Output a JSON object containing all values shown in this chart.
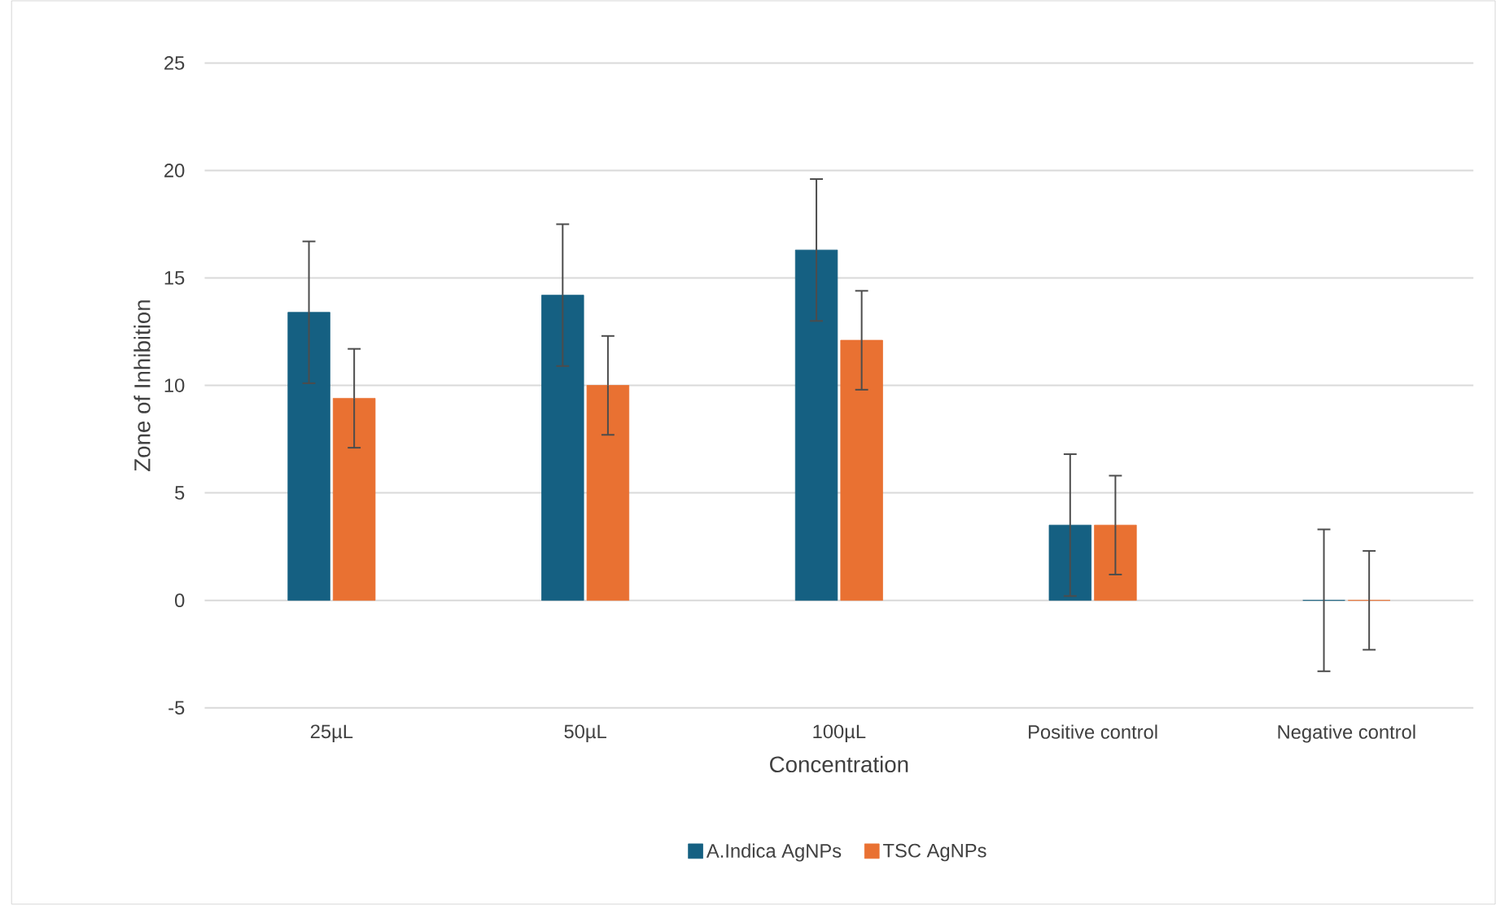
{
  "chart_data": {
    "type": "bar",
    "xlabel": "Concentration",
    "ylabel": "Zone of Inhibition",
    "categories": [
      "25µL",
      "50µL",
      "100µL",
      "Positive control",
      "Negative control"
    ],
    "series": [
      {
        "name": "A.Indica AgNPs",
        "color": "#156082",
        "values": [
          13.4,
          14.2,
          16.3,
          3.5,
          0
        ],
        "errors": [
          3.3,
          3.3,
          3.3,
          3.3,
          3.3
        ]
      },
      {
        "name": "TSC AgNPs",
        "color": "#e97132",
        "values": [
          9.4,
          10.0,
          12.1,
          3.5,
          0
        ],
        "errors": [
          2.3,
          2.3,
          2.3,
          2.3,
          2.3
        ]
      }
    ],
    "ylim": [
      -5,
      25
    ],
    "yticks": [
      -5,
      0,
      5,
      10,
      15,
      20,
      25
    ],
    "grid": "y",
    "legend": "bottom"
  }
}
